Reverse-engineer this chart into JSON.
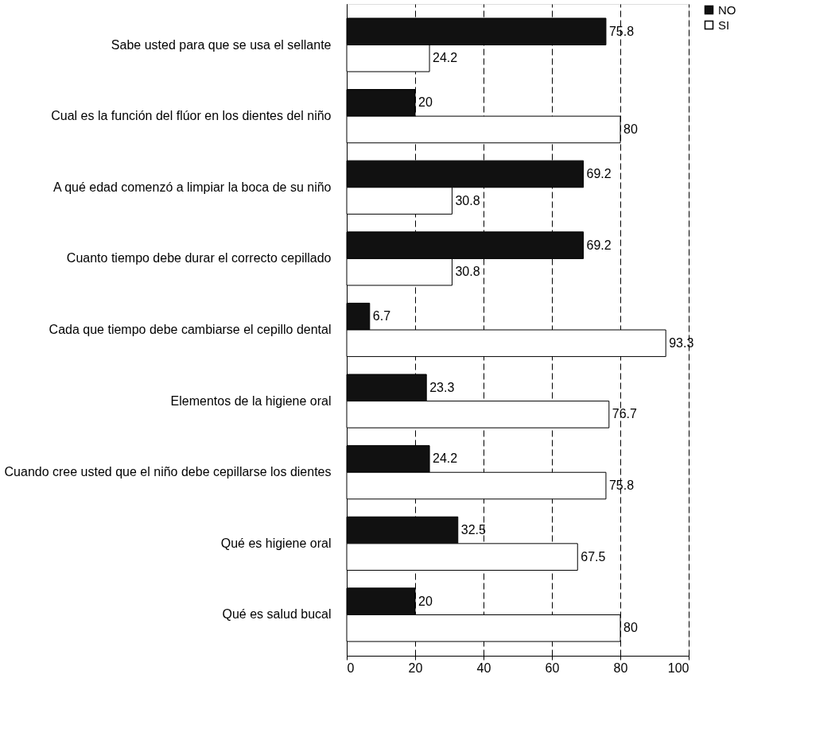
{
  "chart_data": {
    "type": "bar",
    "orientation": "horizontal",
    "categories": [
      "Sabe usted para que se usa el sellante",
      "Cual es la función del flúor en los dientes del niño",
      "A qué edad comenzó a limpiar la boca de su niño",
      "Cuanto tiempo debe durar el correcto cepillado",
      "Cada que tiempo debe cambiarse el cepillo dental",
      "Elementos de la higiene oral",
      "Cuando cree usted que el niño debe cepillarse los dientes",
      "Qué es higiene oral",
      "Qué es salud bucal"
    ],
    "series": [
      {
        "name": "NO",
        "color": "#111111",
        "values": [
          75.8,
          20,
          69.2,
          69.2,
          6.7,
          23.3,
          24.2,
          32.5,
          20
        ]
      },
      {
        "name": "SI",
        "color": "#ffffff",
        "values": [
          24.2,
          80,
          30.8,
          30.8,
          93.3,
          76.7,
          75.8,
          67.5,
          80
        ]
      }
    ],
    "xlim": [
      0,
      100
    ],
    "xticks": [
      0,
      20,
      40,
      60,
      80,
      100
    ],
    "grid": "x",
    "legend": "right",
    "data_labels": true
  }
}
